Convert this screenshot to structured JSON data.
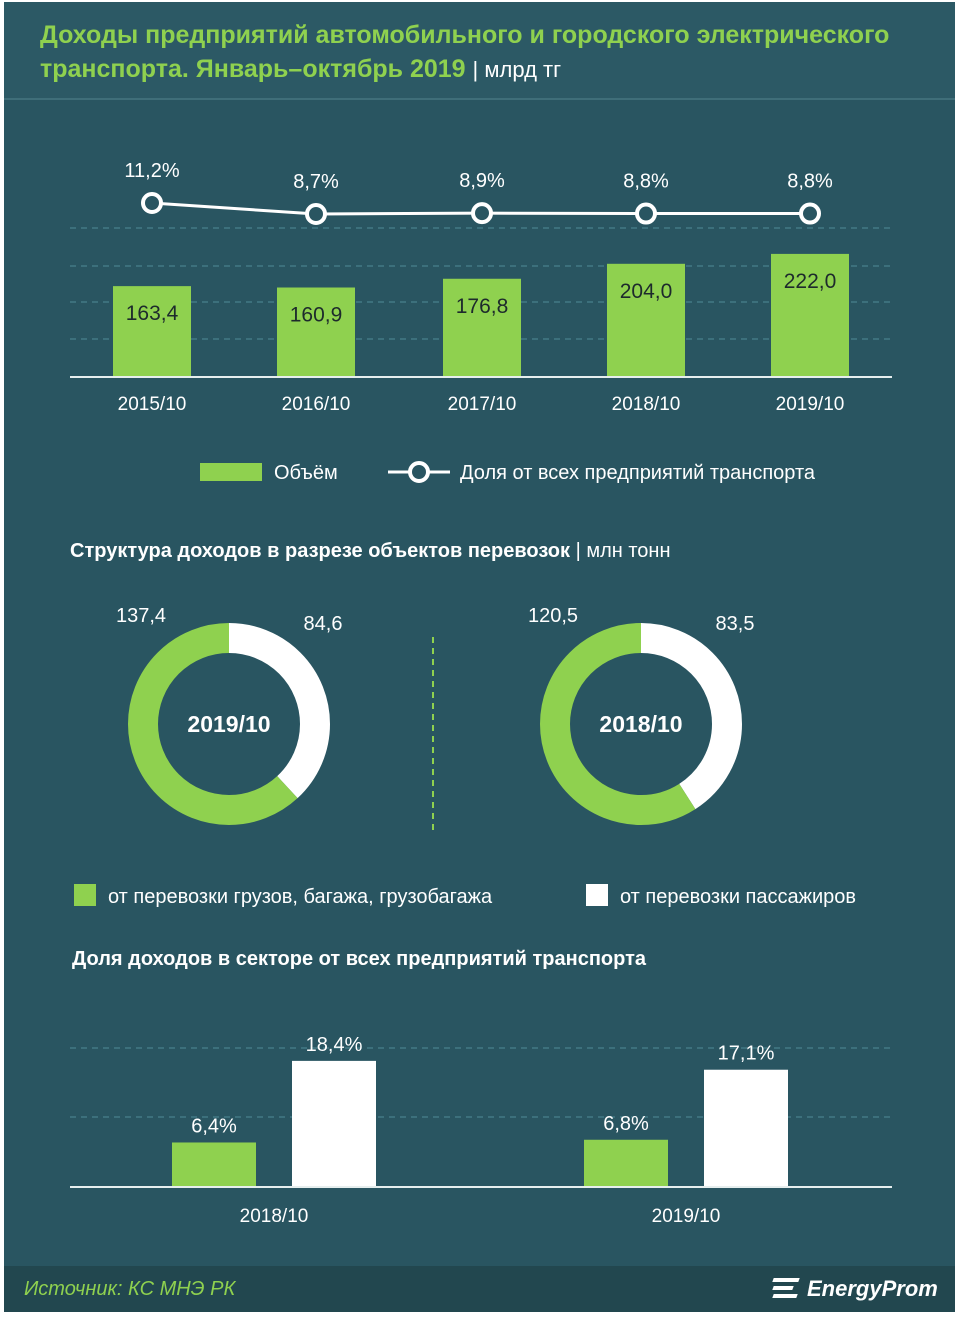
{
  "header": {
    "title": "Доходы предприятий автомобильного и городского электрического транспорта. Январь–октябрь 2019",
    "unit": "| млрд тг"
  },
  "colors": {
    "background": "#295561",
    "green": "#8fd14f",
    "white": "#ffffff"
  },
  "chart_data": [
    {
      "type": "bar",
      "categories": [
        "2015/10",
        "2016/10",
        "2017/10",
        "2018/10",
        "2019/10"
      ],
      "series": [
        {
          "name": "Объём",
          "values": [
            163.4,
            160.9,
            176.8,
            204.0,
            222.0
          ],
          "labels": [
            "163,4",
            "160,9",
            "176,8",
            "204,0",
            "222,0"
          ]
        },
        {
          "name": "Доля от всех предприятий транспорта",
          "type": "line",
          "values": [
            11.2,
            8.7,
            8.9,
            8.8,
            8.8
          ],
          "labels": [
            "11,2%",
            "8,7%",
            "8,9%",
            "8,8%",
            "8,8%"
          ]
        }
      ],
      "legend": "bottom"
    },
    {
      "type": "pie",
      "title": "Структура доходов в разрезе объектов перевозок",
      "unit": "| млн тонн",
      "series_names": [
        "от перевозки грузов, багажа, грузобагажа",
        "от перевозки пассажиров"
      ],
      "charts": [
        {
          "center_label": "2019/10",
          "values": [
            137.4,
            84.6
          ],
          "labels": [
            "137,4",
            "84,6"
          ]
        },
        {
          "center_label": "2018/10",
          "values": [
            120.5,
            83.5
          ],
          "labels": [
            "120,5",
            "83,5"
          ]
        }
      ],
      "legend": "bottom"
    },
    {
      "type": "bar",
      "title": "Доля доходов в секторе от всех предприятий транспорта",
      "categories": [
        "2018/10",
        "2019/10"
      ],
      "series": [
        {
          "values": [
            6.4,
            6.8
          ],
          "labels": [
            "6,4%",
            "6,8%"
          ]
        },
        {
          "values": [
            18.4,
            17.1
          ],
          "labels": [
            "18,4%",
            "17,1%"
          ]
        }
      ]
    }
  ],
  "footer": {
    "source": "Источник: КС МНЭ РК",
    "logo": "EnergyProm"
  }
}
